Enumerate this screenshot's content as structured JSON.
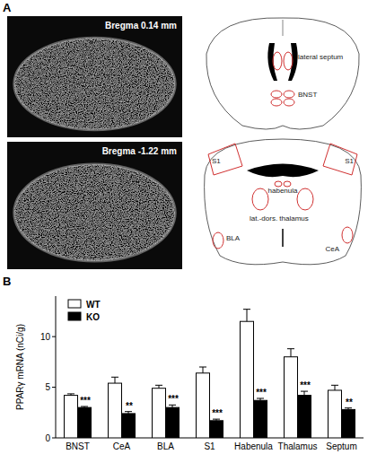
{
  "panel_a": {
    "label": "A",
    "images": [
      "Bregma 0.14 mm",
      "Bregma -1.22 mm"
    ],
    "atlas": [
      [
        "lateral septum",
        "BNST"
      ],
      [
        "S1",
        "S1",
        "habenula",
        "lat.-dors. thalamus",
        "BLA",
        "CeA"
      ]
    ]
  },
  "panel_b_label": "B",
  "chart_data": {
    "type": "bar",
    "y_label": "PPARγ mRNA (nCi/g)",
    "categories": [
      "BNST",
      "CeA",
      "BLA",
      "S1",
      "Habenula",
      "Thalamus",
      "Septum"
    ],
    "series": [
      {
        "name": "WT",
        "color": "#ffffff",
        "values": [
          4.2,
          5.4,
          4.9,
          6.4,
          11.5,
          8.0,
          4.7
        ],
        "errors": [
          0.15,
          0.6,
          0.3,
          0.6,
          1.2,
          0.8,
          0.5
        ]
      },
      {
        "name": "KO",
        "color": "#000000",
        "values": [
          3.0,
          2.4,
          3.0,
          1.7,
          3.7,
          4.2,
          2.8
        ],
        "errors": [
          0.1,
          0.2,
          0.25,
          0.15,
          0.2,
          0.4,
          0.15
        ],
        "significance": [
          "***",
          "**",
          "***",
          "***",
          "***",
          "***",
          "**"
        ]
      }
    ],
    "ylim": [
      0,
      14
    ],
    "yticks": [
      0,
      5,
      10
    ],
    "legend": "upper left"
  }
}
